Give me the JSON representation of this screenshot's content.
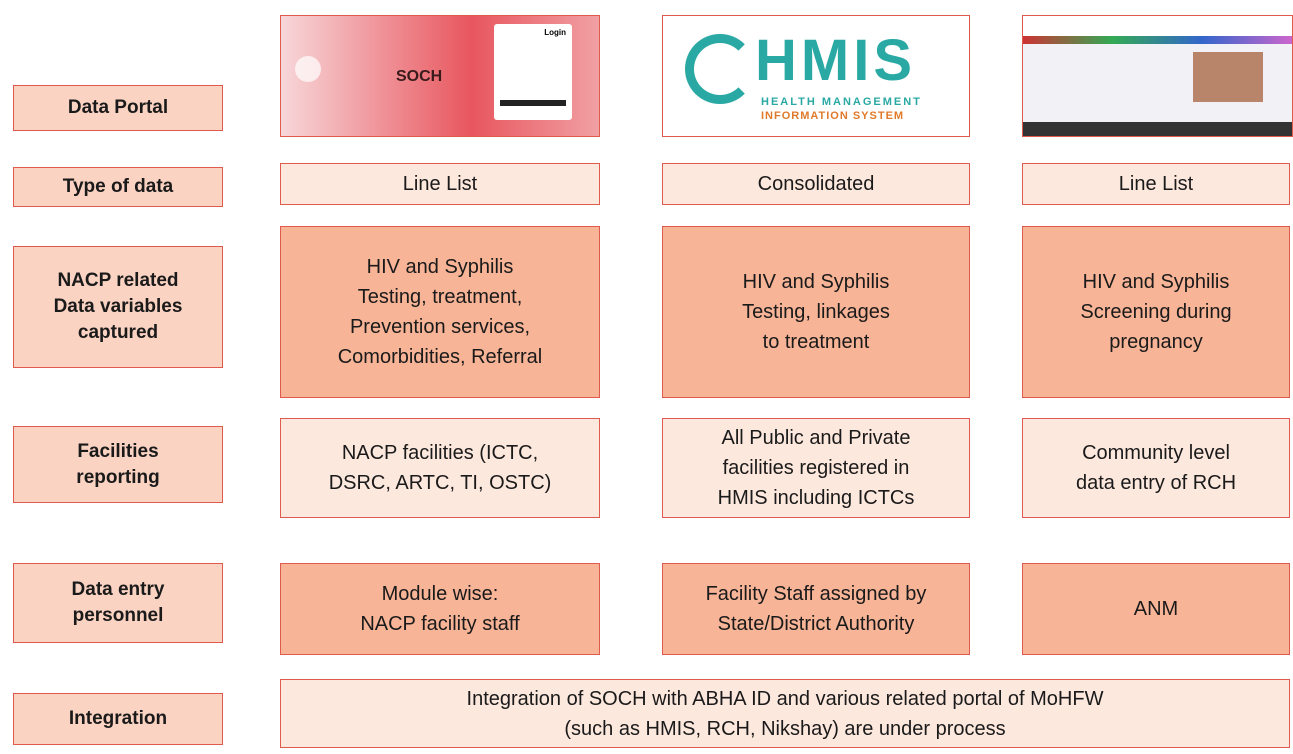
{
  "rows": [
    {
      "label": [
        "Data Portal"
      ]
    },
    {
      "label": [
        "Type of data"
      ],
      "cells": [
        [
          "Line List"
        ],
        [
          "Consolidated"
        ],
        [
          "Line List"
        ]
      ]
    },
    {
      "label": [
        "NACP related",
        "Data variables",
        "captured"
      ],
      "cells": [
        [
          "HIV and Syphilis",
          "Testing, treatment,",
          "Prevention services,",
          "Comorbidities, Referral"
        ],
        [
          "HIV and Syphilis",
          "Testing, linkages",
          "to treatment"
        ],
        [
          "HIV and Syphilis",
          "Screening during",
          "pregnancy"
        ]
      ]
    },
    {
      "label": [
        "Facilities",
        "reporting"
      ],
      "cells": [
        [
          "NACP facilities (ICTC,",
          "DSRC, ARTC, TI, OSTC)"
        ],
        [
          "All Public and Private",
          "facilities registered in",
          "HMIS including ICTCs"
        ],
        [
          "Community level",
          "data entry of RCH"
        ]
      ]
    },
    {
      "label": [
        "Data entry",
        "personnel"
      ],
      "cells": [
        [
          "Module wise:",
          "NACP facility staff"
        ],
        [
          "Facility Staff assigned by",
          "State/District Authority"
        ],
        [
          "ANM"
        ]
      ]
    },
    {
      "label": [
        "Integration"
      ],
      "cells": [
        [
          "Integration of SOCH with ABHA ID and various related portal of MoHFW",
          "(such as HMIS, RCH, Nikshay) are under process"
        ]
      ]
    }
  ],
  "portals": {
    "soch": {
      "title": "SOCH",
      "login": "Login"
    },
    "hmis": {
      "title": "HMIS",
      "subtitle": [
        "HEALTH MANAGEMENT",
        "INFORMATION SYSTEM"
      ]
    }
  }
}
